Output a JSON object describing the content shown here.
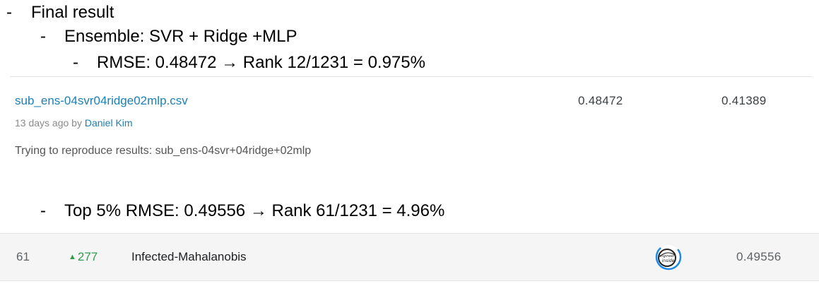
{
  "notes": {
    "bullet_symbol": "-",
    "line1": "Final result",
    "line2": "Ensemble: SVR + Ridge +MLP",
    "line3": "RMSE: 0.48472 → Rank 12/1231 = 0.975%",
    "line4": "Top  5% RMSE: 0.49556 → Rank 61/1231 = 4.96%"
  },
  "submission": {
    "filename": "sub_ens-04svr04ridge02mlp.csv",
    "time_prefix": "13 days ago by ",
    "author": "Daniel Kim",
    "private_score": "0.48472",
    "public_score": "0.41389",
    "description": "Trying to reproduce results: sub_ens-04svr+04ridge+02mlp"
  },
  "leaderboard_row": {
    "rank": "61",
    "delta_icon": "up-triangle-icon",
    "delta": "277",
    "team_name": "Infected-Mahalanobis",
    "avatar_icon": "engineer-inside-avatar-icon",
    "avatar_text": "engineer inside",
    "score": "0.49556"
  },
  "colors": {
    "link": "#1c7fb5",
    "delta_up": "#2e9d4a",
    "row_background": "#f5f5f5",
    "avatar_ring": "#1e88e5"
  }
}
